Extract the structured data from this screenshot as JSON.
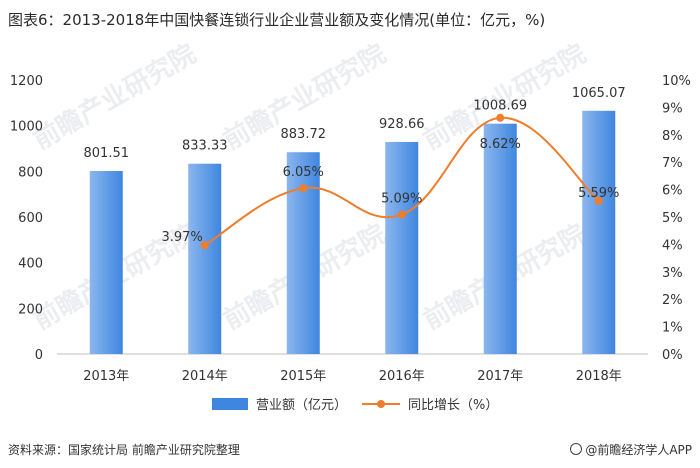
{
  "title": "图表6：2013-2018年中国快餐连锁行业企业营业额及变化情况(单位：亿元，%)",
  "source": "资料来源：国家统计局 前瞻产业研究院整理",
  "brand": "@前瞻经济学人APP",
  "watermark": "前瞻产业研究院",
  "colors": {
    "bar_top": "#3f86e0",
    "bar_light": "#8bb6ee",
    "line": "#f07d2b",
    "axis": "#bfbfbf",
    "text": "#333333"
  },
  "chart_data": {
    "type": "bar",
    "categories": [
      "2013年",
      "2014年",
      "2015年",
      "2016年",
      "2017年",
      "2018年"
    ],
    "series": [
      {
        "name": "营业额（亿元）",
        "type": "bar",
        "axis": "left",
        "values": [
          801.51,
          833.33,
          883.72,
          928.66,
          1008.69,
          1065.07
        ],
        "labels": [
          "801.51",
          "833.33",
          "883.72",
          "928.66",
          "1008.69",
          "1065.07"
        ]
      },
      {
        "name": "同比增长（%）",
        "type": "line",
        "axis": "right",
        "values": [
          null,
          3.97,
          6.05,
          5.09,
          8.62,
          5.59
        ],
        "labels": [
          "",
          "3.97%",
          "6.05%",
          "5.09%",
          "8.62%",
          "5.59%"
        ]
      }
    ],
    "y_left": {
      "min": 0,
      "max": 1200,
      "ticks": [
        0,
        200,
        400,
        600,
        800,
        1000,
        1200
      ],
      "tick_labels": [
        "0",
        "200",
        "400",
        "600",
        "800",
        "1000",
        "1200"
      ]
    },
    "y_right": {
      "min": 0,
      "max": 10,
      "ticks": [
        0,
        1,
        2,
        3,
        4,
        5,
        6,
        7,
        8,
        9,
        10
      ],
      "tick_labels": [
        "0%",
        "1%",
        "2%",
        "3%",
        "4%",
        "5%",
        "6%",
        "7%",
        "8%",
        "9%",
        "10%"
      ]
    },
    "legend_position": "bottom",
    "grid": false,
    "smooth_line": true
  }
}
